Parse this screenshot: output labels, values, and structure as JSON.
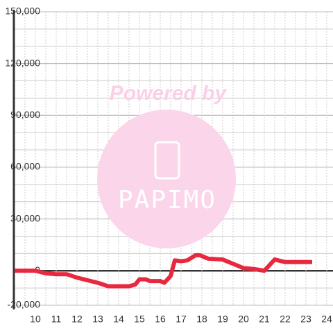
{
  "chart_data": {
    "type": "line",
    "watermark": {
      "top": "Powered by",
      "brand": "PAPIMO"
    },
    "x": [
      9,
      10,
      10.5,
      11,
      11.5,
      12,
      12.5,
      13,
      13.5,
      14,
      14.5,
      14.8,
      15,
      15.3,
      15.5,
      16,
      16.2,
      16.5,
      16.7,
      17,
      17.3,
      17.7,
      17.9,
      18.3,
      19,
      19.3,
      19.7,
      20,
      20.5,
      21,
      21.5,
      22,
      22.5,
      23.3
    ],
    "series": [
      {
        "color": "#e8283f",
        "values": [
          0,
          0,
          -1500,
          -2000,
          -2000,
          -4000,
          -5500,
          -7000,
          -9000,
          -9000,
          -9000,
          -8000,
          -5000,
          -5000,
          -6000,
          -6000,
          -7000,
          -3000,
          6000,
          5500,
          6000,
          9000,
          9000,
          7000,
          6500,
          5000,
          3000,
          1500,
          1000,
          0,
          6500,
          5000,
          5000,
          5000
        ]
      }
    ],
    "xlim": [
      9,
      24.3
    ],
    "xticks": [
      10,
      11,
      12,
      13,
      14,
      15,
      16,
      17,
      18,
      19,
      20,
      21,
      22,
      23,
      24
    ],
    "ylim": [
      -20000,
      150000
    ],
    "yticks": [
      {
        "value": -20000,
        "label": "-20,000"
      },
      0,
      {
        "value": 30000,
        "label": "30,000"
      },
      {
        "value": 60000,
        "label": "60,000"
      },
      {
        "value": 90000,
        "label": "90,000"
      },
      {
        "value": 120000,
        "label": "120,000"
      },
      {
        "value": 150000,
        "label": "150,000"
      }
    ],
    "grid": true
  }
}
